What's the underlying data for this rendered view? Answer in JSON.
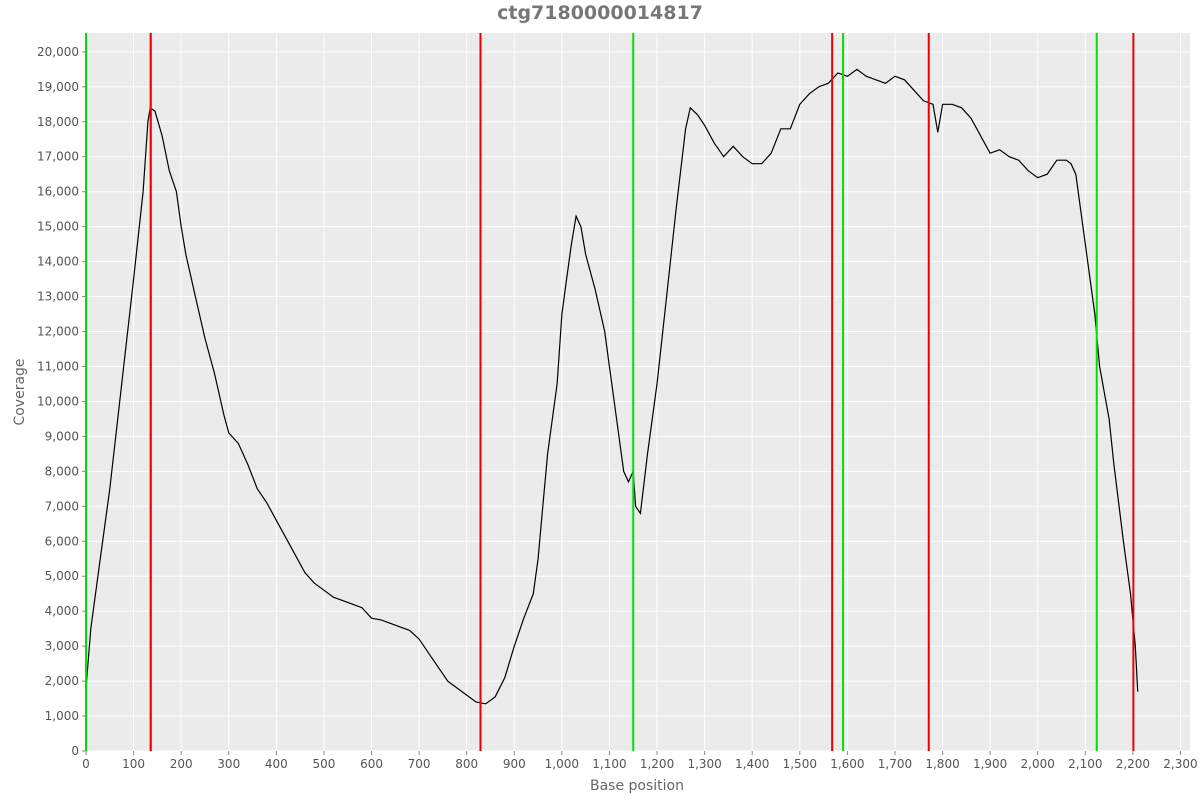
{
  "chart_data": {
    "type": "line",
    "title": "ctg7180000014817",
    "x_label": "Base position",
    "y_label": "Coverage",
    "xlim": [
      0,
      2320
    ],
    "ylim": [
      0,
      20540
    ],
    "xticks": [
      0,
      100,
      200,
      300,
      400,
      500,
      600,
      700,
      800,
      900,
      {
        "value": 1000,
        "label": "1,000"
      },
      {
        "value": 1100,
        "label": "1,100"
      },
      {
        "value": 1200,
        "label": "1,200"
      },
      {
        "value": 1300,
        "label": "1,300"
      },
      {
        "value": 1400,
        "label": "1,400"
      },
      {
        "value": 1500,
        "label": "1,500"
      },
      {
        "value": 1600,
        "label": "1,600"
      },
      {
        "value": 1700,
        "label": "1,700"
      },
      {
        "value": 1800,
        "label": "1,800"
      },
      {
        "value": 1900,
        "label": "1,900"
      },
      {
        "value": 2000,
        "label": "2,000"
      },
      {
        "value": 2100,
        "label": "2,100"
      },
      {
        "value": 2200,
        "label": "2,200"
      },
      {
        "value": 2300,
        "label": "2,300"
      }
    ],
    "yticks": [
      0,
      {
        "value": 1000,
        "label": "1,000"
      },
      {
        "value": 2000,
        "label": "2,000"
      },
      {
        "value": 3000,
        "label": "3,000"
      },
      {
        "value": 4000,
        "label": "4,000"
      },
      {
        "value": 5000,
        "label": "5,000"
      },
      {
        "value": 6000,
        "label": "6,000"
      },
      {
        "value": 7000,
        "label": "7,000"
      },
      {
        "value": 8000,
        "label": "8,000"
      },
      {
        "value": 9000,
        "label": "9,000"
      },
      {
        "value": 10000,
        "label": "10,000"
      },
      {
        "value": 11000,
        "label": "11,000"
      },
      {
        "value": 12000,
        "label": "12,000"
      },
      {
        "value": 13000,
        "label": "13,000"
      },
      {
        "value": 14000,
        "label": "14,000"
      },
      {
        "value": 15000,
        "label": "15,000"
      },
      {
        "value": 16000,
        "label": "16,000"
      },
      {
        "value": 17000,
        "label": "17,000"
      },
      {
        "value": 18000,
        "label": "18,000"
      },
      {
        "value": 19000,
        "label": "19,000"
      },
      {
        "value": 20000,
        "label": "20,000"
      }
    ],
    "grid": true,
    "vlines": [
      {
        "color": "#00e000",
        "x": [
          0,
          136,
          1150,
          1591,
          2124
        ]
      },
      {
        "color": "#ee0000",
        "x": [
          136,
          829,
          1568,
          1771,
          2201
        ]
      }
    ],
    "series": [
      {
        "color": "#000000",
        "x": [
          0,
          10,
          25,
          50,
          75,
          100,
          120,
          130,
          135,
          145,
          160,
          175,
          190,
          200,
          210,
          230,
          250,
          270,
          290,
          300,
          320,
          340,
          360,
          380,
          400,
          420,
          440,
          460,
          480,
          500,
          520,
          540,
          560,
          580,
          600,
          620,
          640,
          660,
          680,
          700,
          720,
          740,
          760,
          780,
          800,
          820,
          840,
          860,
          880,
          900,
          920,
          940,
          950,
          960,
          970,
          990,
          1000,
          1010,
          1020,
          1030,
          1040,
          1050,
          1070,
          1090,
          1100,
          1110,
          1130,
          1140,
          1150,
          1155,
          1165,
          1180,
          1200,
          1220,
          1240,
          1260,
          1270,
          1285,
          1300,
          1320,
          1340,
          1360,
          1380,
          1400,
          1420,
          1440,
          1460,
          1480,
          1500,
          1520,
          1540,
          1560,
          1580,
          1600,
          1620,
          1640,
          1660,
          1680,
          1700,
          1720,
          1740,
          1760,
          1780,
          1790,
          1800,
          1820,
          1840,
          1860,
          1880,
          1900,
          1920,
          1940,
          1960,
          1980,
          2000,
          2020,
          2040,
          2060,
          2070,
          2080,
          2100,
          2120,
          2130,
          2150,
          2160,
          2180,
          2195,
          2205,
          2210
        ],
        "values": [
          1800,
          3500,
          5000,
          7500,
          10500,
          13500,
          16000,
          18000,
          18400,
          18300,
          17600,
          16600,
          16000,
          15000,
          14200,
          13000,
          11800,
          10800,
          9600,
          9100,
          8800,
          8200,
          7500,
          7100,
          6600,
          6100,
          5600,
          5100,
          4800,
          4600,
          4400,
          4300,
          4200,
          4100,
          3800,
          3750,
          3650,
          3550,
          3450,
          3200,
          2800,
          2400,
          2000,
          1800,
          1600,
          1400,
          1350,
          1550,
          2100,
          3000,
          3800,
          4500,
          5500,
          7000,
          8500,
          10500,
          12500,
          13500,
          14500,
          15300,
          15000,
          14200,
          13200,
          12000,
          11000,
          10000,
          8000,
          7700,
          8000,
          7000,
          6800,
          8500,
          10500,
          13000,
          15500,
          17800,
          18400,
          18200,
          17900,
          17400,
          17000,
          17300,
          17000,
          16800,
          16800,
          17100,
          17800,
          17800,
          18500,
          18800,
          19000,
          19100,
          19400,
          19300,
          19500,
          19300,
          19200,
          19100,
          19300,
          19200,
          18900,
          18600,
          18500,
          17700,
          18500,
          18500,
          18400,
          18100,
          17600,
          17100,
          17200,
          17000,
          16900,
          16600,
          16400,
          16500,
          16900,
          16900,
          16800,
          16500,
          14500,
          12500,
          11000,
          9500,
          8200,
          6000,
          4500,
          3000,
          1700
        ]
      }
    ]
  }
}
